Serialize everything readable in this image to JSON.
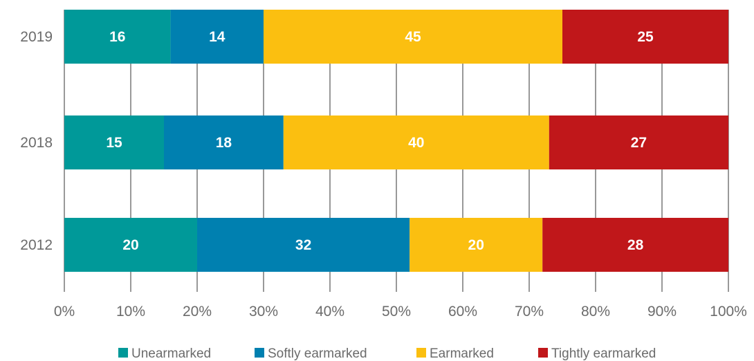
{
  "chart_data": {
    "type": "bar",
    "orientation": "horizontal",
    "stacked": true,
    "categories": [
      "2019",
      "2018",
      "2012"
    ],
    "series": [
      {
        "name": "Unearmarked",
        "color": "#009999",
        "values": [
          16,
          15,
          20
        ]
      },
      {
        "name": "Softly earmarked",
        "color": "#0080b0",
        "values": [
          14,
          18,
          32
        ]
      },
      {
        "name": "Earmarked",
        "color": "#fbbf10",
        "values": [
          45,
          40,
          20
        ]
      },
      {
        "name": "Tightly earmarked",
        "color": "#c0171a",
        "values": [
          25,
          27,
          28
        ]
      }
    ],
    "xlim": [
      0,
      100
    ],
    "xticks": [
      "0%",
      "10%",
      "20%",
      "30%",
      "40%",
      "50%",
      "60%",
      "70%",
      "80%",
      "90%",
      "100%"
    ],
    "grid": true,
    "legend_position": "bottom"
  }
}
